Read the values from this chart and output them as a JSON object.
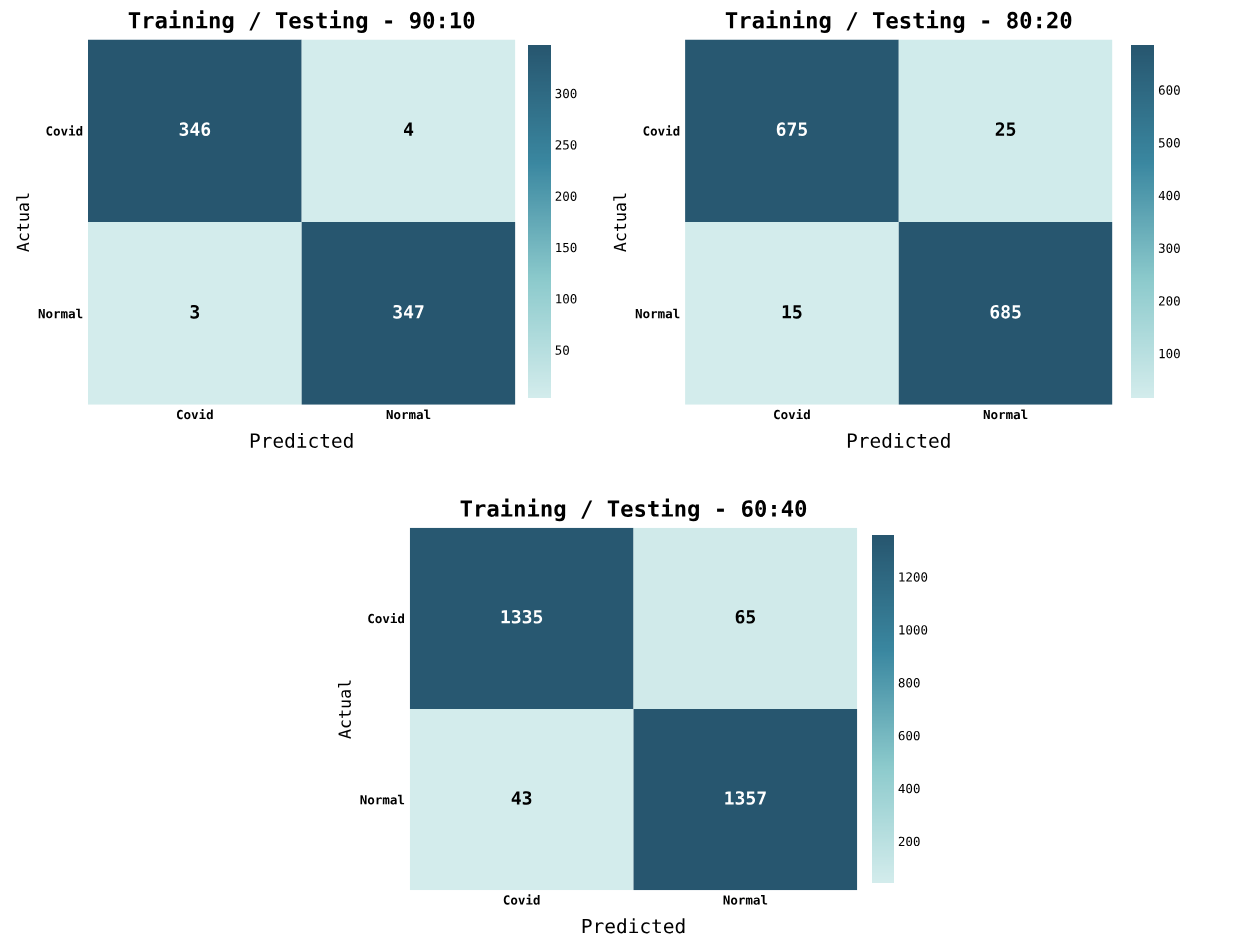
{
  "chart_data": [
    {
      "type": "heatmap",
      "title": "Training / Testing - 90:10",
      "xlabel": "Predicted",
      "ylabel": "Actual",
      "categories": [
        "Covid",
        "Normal"
      ],
      "y_categories": [
        "Covid",
        "Normal"
      ],
      "cells": [
        [
          346,
          4
        ],
        [
          3,
          347
        ]
      ],
      "data_labels": true,
      "clim": [
        3,
        347
      ],
      "cticks": [
        50,
        100,
        150,
        200,
        250,
        300
      ]
    },
    {
      "type": "heatmap",
      "title": "Training / Testing - 80:20",
      "xlabel": "Predicted",
      "ylabel": "Actual",
      "categories": [
        "Covid",
        "Normal"
      ],
      "y_categories": [
        "Covid",
        "Normal"
      ],
      "cells": [
        [
          675,
          25
        ],
        [
          15,
          685
        ]
      ],
      "data_labels": true,
      "clim": [
        15,
        685
      ],
      "cticks": [
        100,
        200,
        300,
        400,
        500,
        600
      ]
    },
    {
      "type": "heatmap",
      "title": "Training / Testing - 60:40",
      "xlabel": "Predicted",
      "ylabel": "Actual",
      "categories": [
        "Covid",
        "Normal"
      ],
      "y_categories": [
        "Covid",
        "Normal"
      ],
      "cells": [
        [
          1335,
          65
        ],
        [
          43,
          1357
        ]
      ],
      "data_labels": true,
      "clim": [
        43,
        1357
      ],
      "cticks": [
        200,
        400,
        600,
        800,
        1000,
        1200
      ]
    }
  ]
}
